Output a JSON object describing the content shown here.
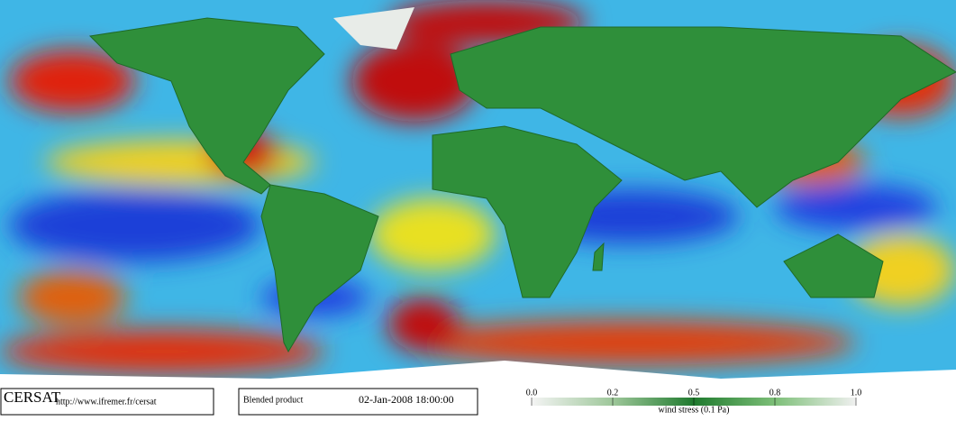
{
  "product": {
    "logo": "CERSAT",
    "url": "http://www.ifremer.fr/cersat",
    "name": "Blended product",
    "date": "02-Jan-2008 18:00:00"
  },
  "colorbar": {
    "label": "wind stress (0.1 Pa)",
    "ticks": [
      {
        "value": 0,
        "label": "0.0"
      },
      0.2,
      0.5,
      0.8,
      {
        "value": 1,
        "label": "1.0"
      }
    ]
  }
}
